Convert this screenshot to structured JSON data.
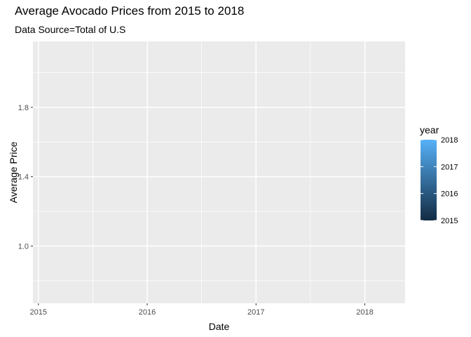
{
  "chart_data": {
    "type": "line",
    "title": "Average Avocado Prices from 2015 to 2018",
    "subtitle": "Data Source=Total of U.S",
    "xlabel": "Date",
    "ylabel": "Average Price",
    "x_ticks": [
      "2015",
      "2016",
      "2017",
      "2018"
    ],
    "x_tick_values": [
      2015,
      2016,
      2017,
      2018
    ],
    "xlim": [
      2014.95,
      2018.37
    ],
    "y_ticks": [
      "1.0",
      "1.4",
      "1.8"
    ],
    "y_tick_values": [
      1.0,
      1.4,
      1.8
    ],
    "ylim": [
      0.67,
      2.18
    ],
    "grid": true,
    "panel_background": "#ebebeb",
    "grid_color": "#ffffff",
    "series": [],
    "legend": {
      "title": "year",
      "placement": "right",
      "type": "colorbar",
      "labels": [
        "2018",
        "2017",
        "2016",
        "2015"
      ],
      "values": [
        2018,
        2017,
        2016,
        2015
      ],
      "color_low": "#132b43",
      "color_high": "#56b1f7"
    }
  }
}
